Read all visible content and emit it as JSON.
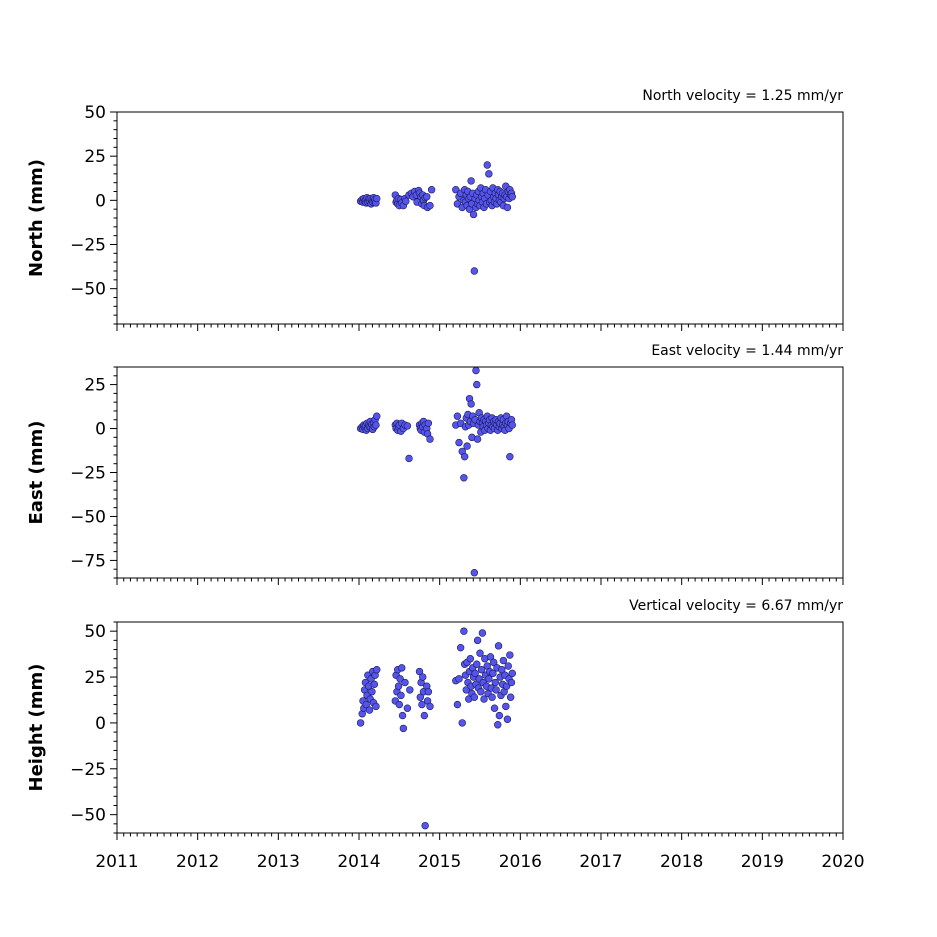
{
  "chart_data": [
    {
      "type": "scatter",
      "title": "North velocity = 1.25 mm/yr",
      "ylabel": "North (mm)",
      "xlim": [
        2011,
        2020
      ],
      "ylim": [
        -70,
        50
      ],
      "yticks": [
        50,
        25,
        0,
        -25,
        -50
      ],
      "ytick_labels": [
        "50",
        "25",
        "0",
        "−25",
        "−50"
      ],
      "point_color": "#5555ee",
      "points": [
        [
          2014.02,
          -0.5
        ],
        [
          2014.04,
          0.5
        ],
        [
          2014.05,
          -1
        ],
        [
          2014.06,
          1
        ],
        [
          2014.07,
          -0.5
        ],
        [
          2014.08,
          0
        ],
        [
          2014.09,
          -1.5
        ],
        [
          2014.1,
          1.5
        ],
        [
          2014.11,
          -1
        ],
        [
          2014.12,
          0.5
        ],
        [
          2014.13,
          -0.5
        ],
        [
          2014.14,
          1
        ],
        [
          2014.15,
          -2
        ],
        [
          2014.16,
          0
        ],
        [
          2014.17,
          -1
        ],
        [
          2014.18,
          1.5
        ],
        [
          2014.19,
          -0.5
        ],
        [
          2014.2,
          0.5
        ],
        [
          2014.21,
          -1.5
        ],
        [
          2014.22,
          1
        ],
        [
          2014.45,
          3
        ],
        [
          2014.46,
          -1
        ],
        [
          2014.47,
          0
        ],
        [
          2014.48,
          -2
        ],
        [
          2014.49,
          1
        ],
        [
          2014.5,
          -3
        ],
        [
          2014.52,
          0.5
        ],
        [
          2014.53,
          -1.5
        ],
        [
          2014.55,
          -3
        ],
        [
          2014.57,
          1
        ],
        [
          2014.58,
          -0.5
        ],
        [
          2014.62,
          3
        ],
        [
          2014.65,
          4
        ],
        [
          2014.67,
          2
        ],
        [
          2014.69,
          5
        ],
        [
          2014.71,
          3
        ],
        [
          2014.72,
          -1
        ],
        [
          2014.74,
          5.5
        ],
        [
          2014.75,
          4
        ],
        [
          2014.77,
          2
        ],
        [
          2014.78,
          -2
        ],
        [
          2014.79,
          3
        ],
        [
          2014.8,
          0
        ],
        [
          2014.81,
          -3
        ],
        [
          2014.82,
          1.5
        ],
        [
          2014.84,
          2
        ],
        [
          2014.85,
          -4
        ],
        [
          2014.88,
          -3
        ],
        [
          2014.9,
          6
        ],
        [
          2015.2,
          6
        ],
        [
          2015.22,
          -2
        ],
        [
          2015.24,
          2
        ],
        [
          2015.26,
          4
        ],
        [
          2015.28,
          -4
        ],
        [
          2015.3,
          0
        ],
        [
          2015.31,
          6
        ],
        [
          2015.32,
          -1
        ],
        [
          2015.33,
          3
        ],
        [
          2015.34,
          -3
        ],
        [
          2015.35,
          5
        ],
        [
          2015.36,
          1
        ],
        [
          2015.37,
          -5
        ],
        [
          2015.38,
          2
        ],
        [
          2015.39,
          11
        ],
        [
          2015.4,
          -2
        ],
        [
          2015.41,
          4
        ],
        [
          2015.42,
          -8
        ],
        [
          2015.43,
          -40
        ],
        [
          2015.44,
          1
        ],
        [
          2015.45,
          -4
        ],
        [
          2015.46,
          3
        ],
        [
          2015.47,
          -2
        ],
        [
          2015.48,
          5
        ],
        [
          2015.49,
          0
        ],
        [
          2015.5,
          -3
        ],
        [
          2015.51,
          7
        ],
        [
          2015.52,
          2
        ],
        [
          2015.53,
          -1
        ],
        [
          2015.54,
          4
        ],
        [
          2015.55,
          -4
        ],
        [
          2015.56,
          1
        ],
        [
          2015.57,
          6
        ],
        [
          2015.58,
          -2
        ],
        [
          2015.59,
          20
        ],
        [
          2015.6,
          3
        ],
        [
          2015.61,
          15
        ],
        [
          2015.62,
          -1
        ],
        [
          2015.63,
          5
        ],
        [
          2015.64,
          0
        ],
        [
          2015.65,
          -3
        ],
        [
          2015.66,
          7
        ],
        [
          2015.67,
          2
        ],
        [
          2015.68,
          -1
        ],
        [
          2015.69,
          4
        ],
        [
          2015.7,
          1
        ],
        [
          2015.71,
          -2
        ],
        [
          2015.72,
          6
        ],
        [
          2015.73,
          3
        ],
        [
          2015.74,
          0
        ],
        [
          2015.75,
          5
        ],
        [
          2015.76,
          -1
        ],
        [
          2015.77,
          2
        ],
        [
          2015.78,
          4
        ],
        [
          2015.79,
          -3
        ],
        [
          2015.8,
          1
        ],
        [
          2015.81,
          3
        ],
        [
          2015.82,
          8
        ],
        [
          2015.83,
          2
        ],
        [
          2015.84,
          -4
        ],
        [
          2015.85,
          5
        ],
        [
          2015.86,
          1
        ],
        [
          2015.87,
          6
        ],
        [
          2015.88,
          3
        ],
        [
          2015.89,
          4
        ],
        [
          2015.9,
          2
        ]
      ]
    },
    {
      "type": "scatter",
      "title": "East velocity = 1.44 mm/yr",
      "ylabel": "East (mm)",
      "xlim": [
        2011,
        2020
      ],
      "ylim": [
        -85,
        35
      ],
      "yticks": [
        25,
        0,
        -25,
        -50,
        -75
      ],
      "ytick_labels": [
        "25",
        "0",
        "−25",
        "−50",
        "−75"
      ],
      "point_color": "#5555ee",
      "points": [
        [
          2014.02,
          0
        ],
        [
          2014.04,
          1
        ],
        [
          2014.05,
          -0.5
        ],
        [
          2014.06,
          2
        ],
        [
          2014.07,
          0.5
        ],
        [
          2014.08,
          1.5
        ],
        [
          2014.09,
          -1
        ],
        [
          2014.1,
          3
        ],
        [
          2014.11,
          0
        ],
        [
          2014.12,
          2
        ],
        [
          2014.13,
          1
        ],
        [
          2014.14,
          4
        ],
        [
          2014.15,
          0.5
        ],
        [
          2014.16,
          2.5
        ],
        [
          2014.17,
          -0.5
        ],
        [
          2014.18,
          3
        ],
        [
          2014.19,
          1
        ],
        [
          2014.2,
          5
        ],
        [
          2014.21,
          2
        ],
        [
          2014.22,
          7
        ],
        [
          2014.45,
          2
        ],
        [
          2014.46,
          0
        ],
        [
          2014.47,
          3
        ],
        [
          2014.48,
          -1
        ],
        [
          2014.49,
          1
        ],
        [
          2014.5,
          2
        ],
        [
          2014.52,
          -1.5
        ],
        [
          2014.53,
          3
        ],
        [
          2014.55,
          0
        ],
        [
          2014.57,
          2
        ],
        [
          2014.6,
          1.5
        ],
        [
          2014.62,
          -17
        ],
        [
          2014.75,
          2
        ],
        [
          2014.76,
          0
        ],
        [
          2014.77,
          -1
        ],
        [
          2014.78,
          3
        ],
        [
          2014.79,
          1
        ],
        [
          2014.8,
          4
        ],
        [
          2014.81,
          -2
        ],
        [
          2014.82,
          2
        ],
        [
          2014.84,
          0
        ],
        [
          2014.85,
          -3
        ],
        [
          2014.86,
          3
        ],
        [
          2014.88,
          -6
        ],
        [
          2015.2,
          2
        ],
        [
          2015.22,
          7
        ],
        [
          2015.24,
          -8
        ],
        [
          2015.26,
          3
        ],
        [
          2015.28,
          -13
        ],
        [
          2015.3,
          -28
        ],
        [
          2015.31,
          -16
        ],
        [
          2015.32,
          1
        ],
        [
          2015.33,
          6
        ],
        [
          2015.34,
          -10
        ],
        [
          2015.35,
          8
        ],
        [
          2015.36,
          2
        ],
        [
          2015.37,
          17
        ],
        [
          2015.38,
          4
        ],
        [
          2015.39,
          14
        ],
        [
          2015.4,
          -5
        ],
        [
          2015.41,
          7
        ],
        [
          2015.42,
          3
        ],
        [
          2015.43,
          -82
        ],
        [
          2015.44,
          5
        ],
        [
          2015.45,
          33
        ],
        [
          2015.46,
          25
        ],
        [
          2015.47,
          -6
        ],
        [
          2015.48,
          2
        ],
        [
          2015.49,
          9
        ],
        [
          2015.5,
          4
        ],
        [
          2015.51,
          -2
        ],
        [
          2015.52,
          6
        ],
        [
          2015.53,
          3
        ],
        [
          2015.54,
          1
        ],
        [
          2015.55,
          5
        ],
        [
          2015.56,
          -1
        ],
        [
          2015.57,
          4
        ],
        [
          2015.58,
          2
        ],
        [
          2015.59,
          7
        ],
        [
          2015.6,
          0
        ],
        [
          2015.61,
          3
        ],
        [
          2015.62,
          5
        ],
        [
          2015.63,
          -1
        ],
        [
          2015.64,
          2
        ],
        [
          2015.65,
          6
        ],
        [
          2015.66,
          1
        ],
        [
          2015.67,
          4
        ],
        [
          2015.68,
          0
        ],
        [
          2015.69,
          3
        ],
        [
          2015.7,
          5
        ],
        [
          2015.71,
          2
        ],
        [
          2015.72,
          -1
        ],
        [
          2015.73,
          4
        ],
        [
          2015.74,
          1
        ],
        [
          2015.75,
          3
        ],
        [
          2015.76,
          6
        ],
        [
          2015.77,
          0
        ],
        [
          2015.78,
          2
        ],
        [
          2015.79,
          5
        ],
        [
          2015.8,
          1
        ],
        [
          2015.81,
          -1
        ],
        [
          2015.82,
          3
        ],
        [
          2015.83,
          7
        ],
        [
          2015.84,
          2
        ],
        [
          2015.85,
          4
        ],
        [
          2015.86,
          0
        ],
        [
          2015.87,
          -16
        ],
        [
          2015.88,
          3
        ],
        [
          2015.89,
          5
        ],
        [
          2015.9,
          2
        ]
      ]
    },
    {
      "type": "scatter",
      "title": "Vertical velocity = 6.67 mm/yr",
      "ylabel": "Height (mm)",
      "xlim": [
        2011,
        2020
      ],
      "ylim": [
        -60,
        55
      ],
      "yticks": [
        50,
        25,
        0,
        -25,
        -50
      ],
      "ytick_labels": [
        "50",
        "25",
        "0",
        "−25",
        "−50"
      ],
      "xticks": [
        2011,
        2012,
        2013,
        2014,
        2015,
        2016,
        2017,
        2018,
        2019,
        2020
      ],
      "xtick_labels": [
        "2011",
        "2012",
        "2013",
        "2014",
        "2015",
        "2016",
        "2017",
        "2018",
        "2019",
        "2020"
      ],
      "point_color": "#5555ee",
      "points": [
        [
          2014.02,
          0
        ],
        [
          2014.04,
          5
        ],
        [
          2014.05,
          12
        ],
        [
          2014.06,
          8
        ],
        [
          2014.07,
          18
        ],
        [
          2014.08,
          22
        ],
        [
          2014.09,
          10
        ],
        [
          2014.1,
          15
        ],
        [
          2014.11,
          26
        ],
        [
          2014.12,
          20
        ],
        [
          2014.13,
          7
        ],
        [
          2014.14,
          13
        ],
        [
          2014.15,
          24
        ],
        [
          2014.16,
          17
        ],
        [
          2014.17,
          28
        ],
        [
          2014.18,
          11
        ],
        [
          2014.19,
          21
        ],
        [
          2014.2,
          26
        ],
        [
          2014.21,
          9
        ],
        [
          2014.22,
          29
        ],
        [
          2014.45,
          12
        ],
        [
          2014.46,
          26
        ],
        [
          2014.47,
          17
        ],
        [
          2014.48,
          29
        ],
        [
          2014.49,
          20
        ],
        [
          2014.5,
          10
        ],
        [
          2014.51,
          24
        ],
        [
          2014.52,
          15
        ],
        [
          2014.53,
          30
        ],
        [
          2014.54,
          4
        ],
        [
          2014.55,
          -3
        ],
        [
          2014.57,
          22
        ],
        [
          2014.6,
          8
        ],
        [
          2014.63,
          18
        ],
        [
          2014.75,
          28
        ],
        [
          2014.76,
          14
        ],
        [
          2014.77,
          22
        ],
        [
          2014.78,
          10
        ],
        [
          2014.79,
          25
        ],
        [
          2014.8,
          17
        ],
        [
          2014.81,
          4
        ],
        [
          2014.82,
          -56
        ],
        [
          2014.84,
          20
        ],
        [
          2014.85,
          12
        ],
        [
          2014.86,
          17
        ],
        [
          2014.88,
          9
        ],
        [
          2015.2,
          23
        ],
        [
          2015.22,
          10
        ],
        [
          2015.24,
          24
        ],
        [
          2015.26,
          41
        ],
        [
          2015.28,
          0
        ],
        [
          2015.3,
          50
        ],
        [
          2015.31,
          32
        ],
        [
          2015.32,
          26
        ],
        [
          2015.33,
          18
        ],
        [
          2015.34,
          33
        ],
        [
          2015.35,
          22
        ],
        [
          2015.36,
          13
        ],
        [
          2015.37,
          28
        ],
        [
          2015.38,
          35
        ],
        [
          2015.39,
          20
        ],
        [
          2015.4,
          16
        ],
        [
          2015.41,
          30
        ],
        [
          2015.42,
          25
        ],
        [
          2015.43,
          14
        ],
        [
          2015.44,
          27
        ],
        [
          2015.45,
          21
        ],
        [
          2015.46,
          32
        ],
        [
          2015.47,
          45
        ],
        [
          2015.48,
          19
        ],
        [
          2015.49,
          24
        ],
        [
          2015.5,
          38
        ],
        [
          2015.51,
          17
        ],
        [
          2015.52,
          29
        ],
        [
          2015.53,
          49
        ],
        [
          2015.54,
          22
        ],
        [
          2015.55,
          13
        ],
        [
          2015.56,
          35
        ],
        [
          2015.57,
          26
        ],
        [
          2015.58,
          20
        ],
        [
          2015.59,
          31
        ],
        [
          2015.6,
          16
        ],
        [
          2015.61,
          24
        ],
        [
          2015.62,
          28
        ],
        [
          2015.63,
          36
        ],
        [
          2015.64,
          19
        ],
        [
          2015.65,
          14
        ],
        [
          2015.66,
          27
        ],
        [
          2015.67,
          33
        ],
        [
          2015.68,
          8
        ],
        [
          2015.69,
          22
        ],
        [
          2015.7,
          18
        ],
        [
          2015.71,
          30
        ],
        [
          2015.72,
          -1
        ],
        [
          2015.73,
          42
        ],
        [
          2015.74,
          4
        ],
        [
          2015.75,
          25
        ],
        [
          2015.76,
          15
        ],
        [
          2015.77,
          29
        ],
        [
          2015.78,
          21
        ],
        [
          2015.79,
          34
        ],
        [
          2015.8,
          17
        ],
        [
          2015.81,
          26
        ],
        [
          2015.82,
          9
        ],
        [
          2015.83,
          20
        ],
        [
          2015.84,
          2
        ],
        [
          2015.85,
          31
        ],
        [
          2015.86,
          24
        ],
        [
          2015.87,
          37
        ],
        [
          2015.88,
          14
        ],
        [
          2015.89,
          22
        ],
        [
          2015.9,
          27
        ]
      ]
    }
  ]
}
